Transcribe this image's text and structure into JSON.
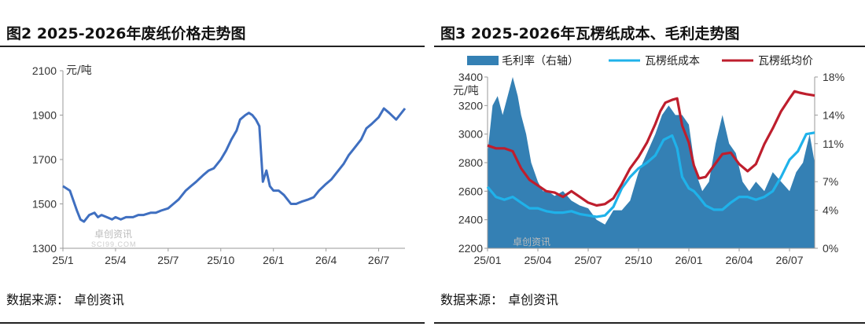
{
  "left": {
    "title": "图2 2025-2026年废纸价格走势图",
    "source_label": "数据来源：",
    "source_value": "卓创资讯",
    "watermark": "卓创资讯",
    "watermark_en": "SCI99.COM"
  },
  "right": {
    "title": "图3 2025-2026年瓦楞纸成本、毛利走势图",
    "source_label": "数据来源：",
    "source_value": "卓创资讯",
    "watermark": "卓创资讯"
  },
  "colors": {
    "line_blue": "#3F6FC0",
    "area_fill": "#3480B4",
    "cost_line": "#1FB2EA",
    "price_line": "#BE1E2D",
    "axis": "#9a9a9a"
  },
  "chart_data": [
    {
      "type": "line",
      "title": "图2 2025-2026年废纸价格走势图",
      "y_unit": "元/吨",
      "ylim": [
        1300,
        2100
      ],
      "y_ticks": [
        "1300",
        "1500",
        "1700",
        "1900",
        "2100"
      ],
      "x_ticks": [
        "25/1",
        "25/4",
        "25/7",
        "25/10",
        "26/1",
        "26/4",
        "26/7"
      ],
      "xlim": [
        0,
        19.5
      ],
      "legend": "none",
      "grid": false,
      "series": [
        {
          "x": [
            0,
            0.4,
            0.8,
            1.0,
            1.2,
            1.5,
            1.8,
            2.0,
            2.2,
            2.5,
            2.8,
            3.0,
            3.3,
            3.6,
            4.0,
            4.3,
            4.6,
            5.0,
            5.3,
            5.6,
            6.0,
            6.3,
            6.6,
            7.0,
            7.3,
            7.6,
            8.0,
            8.3,
            8.6,
            9.0,
            9.3,
            9.6,
            9.9,
            10.1,
            10.4,
            10.6,
            10.8,
            11.0,
            11.2,
            11.4,
            11.6,
            11.8,
            12.0,
            12.3,
            12.6,
            13.0,
            13.3,
            13.6,
            14.0,
            14.3,
            14.6,
            15.0,
            15.3,
            15.6,
            16.0,
            16.3,
            16.6,
            17.0,
            17.3,
            17.6,
            18.0,
            18.3,
            18.6,
            19.0,
            19.2,
            19.5
          ],
          "values": [
            1580,
            1560,
            1470,
            1430,
            1420,
            1450,
            1460,
            1440,
            1450,
            1440,
            1430,
            1440,
            1430,
            1440,
            1440,
            1450,
            1450,
            1460,
            1460,
            1470,
            1480,
            1500,
            1520,
            1560,
            1580,
            1600,
            1630,
            1650,
            1660,
            1700,
            1740,
            1790,
            1830,
            1880,
            1900,
            1910,
            1900,
            1880,
            1850,
            1600,
            1650,
            1580,
            1560,
            1560,
            1540,
            1500,
            1500,
            1510,
            1520,
            1530,
            1560,
            1590,
            1610,
            1640,
            1680,
            1720,
            1750,
            1790,
            1840,
            1860,
            1890,
            1930,
            1910,
            1880,
            1900,
            1930
          ]
        }
      ]
    },
    {
      "type": "area+line",
      "title": "图3 2025-2026年瓦楞纸成本、毛利走势图",
      "y_unit": "元/吨",
      "ylim": [
        2200,
        3400
      ],
      "y_ticks": [
        "2200",
        "2400",
        "2600",
        "2800",
        "3000",
        "3200",
        "3400"
      ],
      "y2lim": [
        0,
        18
      ],
      "y2_ticks": [
        "0%",
        "4%",
        "7%",
        "11%",
        "14%",
        "18%"
      ],
      "x_ticks": [
        "25/01",
        "25/04",
        "25/07",
        "25/10",
        "26/01",
        "26/04",
        "26/07"
      ],
      "xlim": [
        0,
        19.5
      ],
      "legend": "top",
      "grid": false,
      "series": [
        {
          "name": "毛利率（右轴）",
          "kind": "area",
          "axis": "right",
          "x": [
            0,
            0.3,
            0.6,
            0.9,
            1.2,
            1.5,
            1.8,
            2.0,
            2.3,
            2.6,
            3.0,
            3.3,
            3.6,
            4.0,
            4.5,
            5.0,
            5.5,
            6.0,
            6.5,
            7.0,
            7.5,
            8.0,
            8.5,
            9.0,
            9.5,
            10.0,
            10.4,
            10.8,
            11.2,
            11.6,
            12.0,
            12.4,
            12.8,
            13.2,
            13.6,
            14.0,
            14.4,
            14.8,
            15.2,
            15.6,
            16.0,
            16.5,
            17.0,
            17.5,
            18.0,
            18.4,
            18.8,
            19.2,
            19.5
          ],
          "values": [
            10,
            15,
            16,
            14,
            16,
            18,
            16,
            14,
            12,
            9,
            7,
            6,
            6,
            5.5,
            6,
            5,
            4.5,
            4.2,
            3,
            2.5,
            4,
            4,
            5,
            8,
            10,
            12,
            14,
            15,
            14,
            14,
            13,
            8,
            6,
            7,
            11,
            14,
            11,
            10,
            7,
            6,
            7,
            6,
            8,
            7,
            6,
            8,
            9,
            12,
            9
          ]
        },
        {
          "name": "瓦楞纸成本",
          "kind": "line",
          "axis": "left",
          "x": [
            0,
            0.5,
            1.0,
            1.5,
            2.0,
            2.5,
            3.0,
            3.5,
            4.0,
            4.5,
            5.0,
            5.5,
            6.0,
            6.5,
            7.0,
            7.5,
            8.0,
            8.5,
            9.0,
            9.5,
            10.0,
            10.5,
            11.0,
            11.3,
            11.6,
            12.0,
            12.3,
            12.6,
            13.0,
            13.5,
            14.0,
            14.5,
            15.0,
            15.5,
            16.0,
            16.5,
            17.0,
            17.5,
            18.0,
            18.5,
            19.0,
            19.5
          ],
          "values": [
            2630,
            2560,
            2540,
            2560,
            2520,
            2480,
            2480,
            2460,
            2450,
            2450,
            2460,
            2440,
            2430,
            2420,
            2430,
            2490,
            2620,
            2700,
            2760,
            2800,
            2850,
            2960,
            2990,
            2900,
            2700,
            2620,
            2600,
            2560,
            2500,
            2470,
            2470,
            2520,
            2560,
            2560,
            2540,
            2560,
            2600,
            2700,
            2820,
            2880,
            3000,
            3010
          ]
        },
        {
          "name": "瓦楞纸均价",
          "kind": "line",
          "axis": "left",
          "x": [
            0,
            0.5,
            1.0,
            1.5,
            2.0,
            2.5,
            3.0,
            3.5,
            4.0,
            4.5,
            5.0,
            5.5,
            6.0,
            6.5,
            7.0,
            7.5,
            8.0,
            8.5,
            9.0,
            9.5,
            10.0,
            10.3,
            10.6,
            11.0,
            11.3,
            11.6,
            12.0,
            12.3,
            12.6,
            13.0,
            13.5,
            14.0,
            14.5,
            15.0,
            15.5,
            16.0,
            16.5,
            17.0,
            17.5,
            18.0,
            18.3,
            18.6,
            19.0,
            19.5
          ],
          "values": [
            2920,
            2900,
            2900,
            2880,
            2760,
            2680,
            2640,
            2600,
            2590,
            2560,
            2600,
            2560,
            2520,
            2500,
            2510,
            2550,
            2650,
            2760,
            2840,
            2940,
            3070,
            3160,
            3220,
            3240,
            3250,
            3060,
            2940,
            2780,
            2690,
            2700,
            2780,
            2860,
            2870,
            2790,
            2740,
            2790,
            2930,
            3040,
            3160,
            3250,
            3300,
            3290,
            3280,
            3270
          ]
        }
      ]
    }
  ]
}
